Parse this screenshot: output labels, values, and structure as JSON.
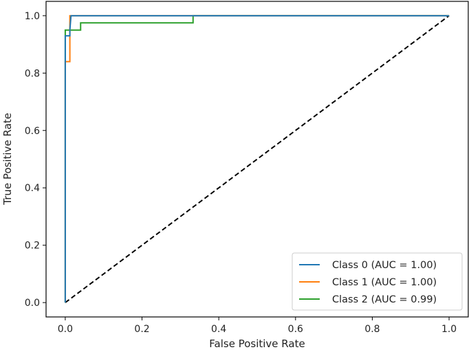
{
  "chart_data": {
    "type": "line",
    "title": "",
    "xlabel": "False Positive Rate",
    "ylabel": "True Positive Rate",
    "xlim": [
      -0.05,
      1.05
    ],
    "ylim": [
      -0.05,
      1.05
    ],
    "xticks": [
      0.0,
      0.2,
      0.4,
      0.6,
      0.8,
      1.0
    ],
    "yticks": [
      0.0,
      0.2,
      0.4,
      0.6,
      0.8,
      1.0
    ],
    "xtick_labels": [
      "0.0",
      "0.2",
      "0.4",
      "0.6",
      "0.8",
      "1.0"
    ],
    "ytick_labels": [
      "0.0",
      "0.2",
      "0.4",
      "0.6",
      "0.8",
      "1.0"
    ],
    "legend_position": "bottom-right",
    "grid": false,
    "series": [
      {
        "name": "Class 0 (AUC = 1.00)",
        "color": "#1f77b4",
        "x": [
          0,
          0,
          0.012,
          0.012,
          0.015,
          1.0
        ],
        "y": [
          0,
          0.93,
          0.93,
          0.95,
          1.0,
          1.0
        ]
      },
      {
        "name": "Class 1 (AUC = 1.00)",
        "color": "#ff7f0e",
        "x": [
          0,
          0,
          0.012,
          0.012,
          1.0
        ],
        "y": [
          0,
          0.84,
          0.84,
          1.0,
          1.0
        ]
      },
      {
        "name": "Class 2 (AUC = 0.99)",
        "color": "#2ca02c",
        "x": [
          0,
          0,
          0.04,
          0.04,
          0.333,
          0.333,
          1.0
        ],
        "y": [
          0,
          0.95,
          0.95,
          0.975,
          0.975,
          1.0,
          1.0
        ]
      }
    ],
    "reference_line": {
      "color": "#000000",
      "style": "dashed",
      "x": [
        0,
        1
      ],
      "y": [
        0,
        1
      ]
    }
  }
}
